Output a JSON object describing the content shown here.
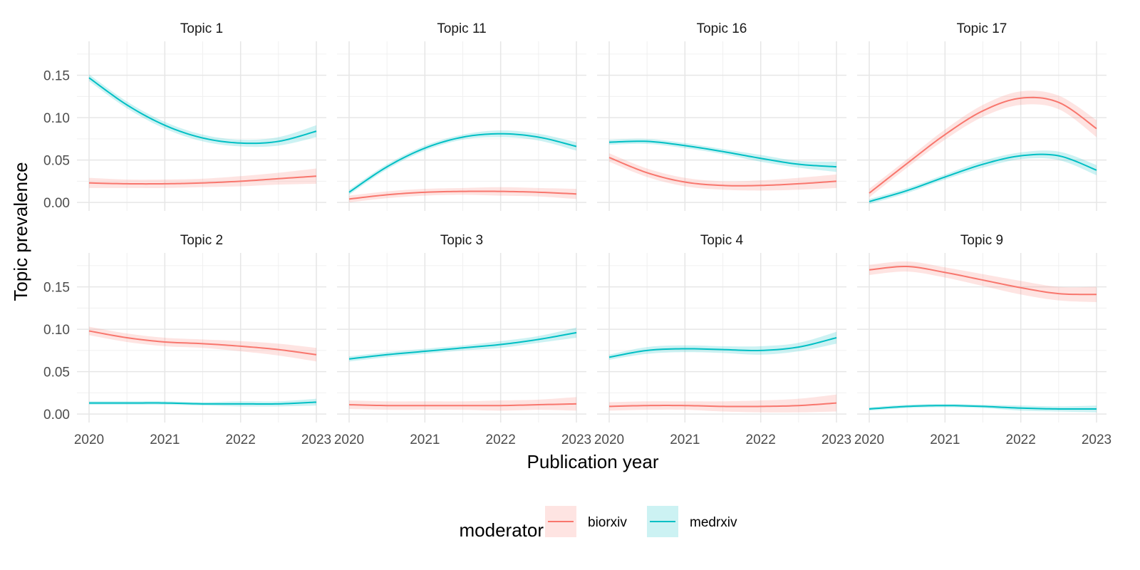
{
  "chart_data": {
    "type": "line",
    "xlabel": "Publication year",
    "ylabel": "Topic prevalence",
    "x_ticks": [
      2020,
      2021,
      2022,
      2023
    ],
    "y_ticks": [
      "0.00",
      "0.05",
      "0.10",
      "0.15"
    ],
    "xlim": [
      2020,
      2023
    ],
    "ylim": [
      -0.01,
      0.19
    ],
    "grid": true,
    "legend": {
      "title": "moderator",
      "position": "bottom",
      "entries": [
        "biorxiv",
        "medrxiv"
      ]
    },
    "colors": {
      "biorxiv": "#F8766D",
      "medrxiv": "#00BFC4"
    },
    "x": [
      2020,
      2020.5,
      2021,
      2021.5,
      2022,
      2022.5,
      2023
    ],
    "panels": [
      {
        "title": "Topic 1",
        "series": [
          {
            "name": "biorxiv",
            "values": [
              0.023,
              0.022,
              0.022,
              0.023,
              0.025,
              0.028,
              0.031
            ],
            "band": [
              0.006,
              0.005,
              0.005,
              0.005,
              0.006,
              0.007,
              0.009
            ]
          },
          {
            "name": "medrxiv",
            "values": [
              0.147,
              0.115,
              0.091,
              0.076,
              0.07,
              0.072,
              0.084
            ],
            "band": [
              0.004,
              0.004,
              0.004,
              0.004,
              0.004,
              0.005,
              0.007
            ]
          }
        ]
      },
      {
        "title": "Topic 11",
        "series": [
          {
            "name": "biorxiv",
            "values": [
              0.004,
              0.009,
              0.012,
              0.013,
              0.013,
              0.012,
              0.01
            ],
            "band": [
              0.004,
              0.004,
              0.004,
              0.004,
              0.005,
              0.005,
              0.006
            ]
          },
          {
            "name": "medrxiv",
            "values": [
              0.012,
              0.042,
              0.064,
              0.077,
              0.081,
              0.077,
              0.066
            ],
            "band": [
              0.003,
              0.003,
              0.003,
              0.003,
              0.004,
              0.004,
              0.005
            ]
          }
        ]
      },
      {
        "title": "Topic 16",
        "series": [
          {
            "name": "biorxiv",
            "values": [
              0.053,
              0.035,
              0.024,
              0.02,
              0.02,
              0.022,
              0.025
            ],
            "band": [
              0.005,
              0.005,
              0.005,
              0.005,
              0.006,
              0.007,
              0.008
            ]
          },
          {
            "name": "medrxiv",
            "values": [
              0.071,
              0.072,
              0.067,
              0.06,
              0.052,
              0.045,
              0.042
            ],
            "band": [
              0.003,
              0.003,
              0.003,
              0.003,
              0.004,
              0.004,
              0.006
            ]
          }
        ]
      },
      {
        "title": "Topic 17",
        "series": [
          {
            "name": "biorxiv",
            "values": [
              0.011,
              0.046,
              0.08,
              0.108,
              0.123,
              0.118,
              0.087
            ],
            "band": [
              0.005,
              0.005,
              0.006,
              0.007,
              0.008,
              0.008,
              0.01
            ]
          },
          {
            "name": "medrxiv",
            "values": [
              0.001,
              0.014,
              0.03,
              0.045,
              0.055,
              0.055,
              0.038
            ],
            "band": [
              0.003,
              0.003,
              0.003,
              0.004,
              0.004,
              0.005,
              0.006
            ]
          }
        ]
      },
      {
        "title": "Topic 2",
        "series": [
          {
            "name": "biorxiv",
            "values": [
              0.098,
              0.09,
              0.085,
              0.083,
              0.08,
              0.076,
              0.07
            ],
            "band": [
              0.005,
              0.005,
              0.005,
              0.005,
              0.006,
              0.007,
              0.008
            ]
          },
          {
            "name": "medrxiv",
            "values": [
              0.013,
              0.013,
              0.013,
              0.012,
              0.012,
              0.012,
              0.014
            ],
            "band": [
              0.002,
              0.002,
              0.002,
              0.002,
              0.003,
              0.003,
              0.004
            ]
          }
        ]
      },
      {
        "title": "Topic 3",
        "series": [
          {
            "name": "biorxiv",
            "values": [
              0.011,
              0.01,
              0.01,
              0.01,
              0.01,
              0.011,
              0.012
            ],
            "band": [
              0.005,
              0.005,
              0.005,
              0.005,
              0.006,
              0.006,
              0.008
            ]
          },
          {
            "name": "medrxiv",
            "values": [
              0.065,
              0.07,
              0.074,
              0.078,
              0.082,
              0.088,
              0.096
            ],
            "band": [
              0.003,
              0.003,
              0.003,
              0.003,
              0.004,
              0.004,
              0.006
            ]
          }
        ]
      },
      {
        "title": "Topic 4",
        "series": [
          {
            "name": "biorxiv",
            "values": [
              0.009,
              0.01,
              0.01,
              0.009,
              0.009,
              0.01,
              0.013
            ],
            "band": [
              0.005,
              0.005,
              0.005,
              0.006,
              0.007,
              0.008,
              0.01
            ]
          },
          {
            "name": "medrxiv",
            "values": [
              0.067,
              0.075,
              0.077,
              0.076,
              0.075,
              0.079,
              0.09
            ],
            "band": [
              0.003,
              0.004,
              0.004,
              0.004,
              0.005,
              0.005,
              0.007
            ]
          }
        ]
      },
      {
        "title": "Topic 9",
        "series": [
          {
            "name": "biorxiv",
            "values": [
              0.17,
              0.174,
              0.167,
              0.158,
              0.149,
              0.142,
              0.141
            ],
            "band": [
              0.006,
              0.006,
              0.006,
              0.007,
              0.008,
              0.008,
              0.009
            ]
          },
          {
            "name": "medrxiv",
            "values": [
              0.006,
              0.009,
              0.01,
              0.009,
              0.007,
              0.006,
              0.006
            ],
            "band": [
              0.002,
              0.002,
              0.002,
              0.002,
              0.003,
              0.003,
              0.004
            ]
          }
        ]
      }
    ]
  }
}
